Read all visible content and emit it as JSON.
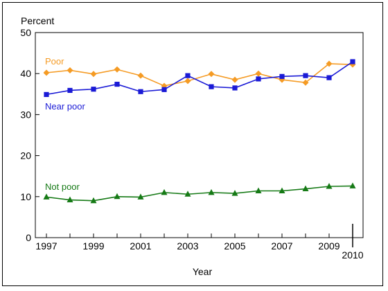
{
  "chart_data": {
    "type": "line",
    "ylabel": "Percent",
    "xlabel": "Year",
    "ylim": [
      0,
      50
    ],
    "yticks": [
      0,
      10,
      20,
      30,
      40,
      50
    ],
    "xlim": [
      1997,
      2010
    ],
    "xtick_labels": [
      "1997",
      "1999",
      "2001",
      "2003",
      "2005",
      "2007",
      "2009",
      "2010"
    ],
    "grid": false,
    "x": [
      1997,
      1998,
      1999,
      2000,
      2001,
      2002,
      2003,
      2004,
      2005,
      2006,
      2007,
      2008,
      2009,
      2010
    ],
    "series": [
      {
        "name": "Poor",
        "color": "#f59b24",
        "marker": "diamond",
        "values": [
          40.2,
          40.8,
          39.9,
          41.0,
          39.5,
          37.0,
          38.2,
          39.9,
          38.5,
          40.0,
          38.5,
          37.8,
          42.4,
          42.2
        ]
      },
      {
        "name": "Near poor",
        "color": "#1a1ad6",
        "marker": "square",
        "values": [
          34.9,
          35.9,
          36.2,
          37.4,
          35.6,
          36.1,
          39.5,
          36.8,
          36.5,
          38.7,
          39.3,
          39.5,
          39.0,
          42.9
        ]
      },
      {
        "name": "Not poor",
        "color": "#167a16",
        "marker": "triangle",
        "values": [
          9.9,
          9.2,
          9.0,
          10.0,
          9.9,
          11.0,
          10.6,
          11.0,
          10.8,
          11.4,
          11.4,
          11.9,
          12.5,
          12.6
        ]
      }
    ]
  }
}
